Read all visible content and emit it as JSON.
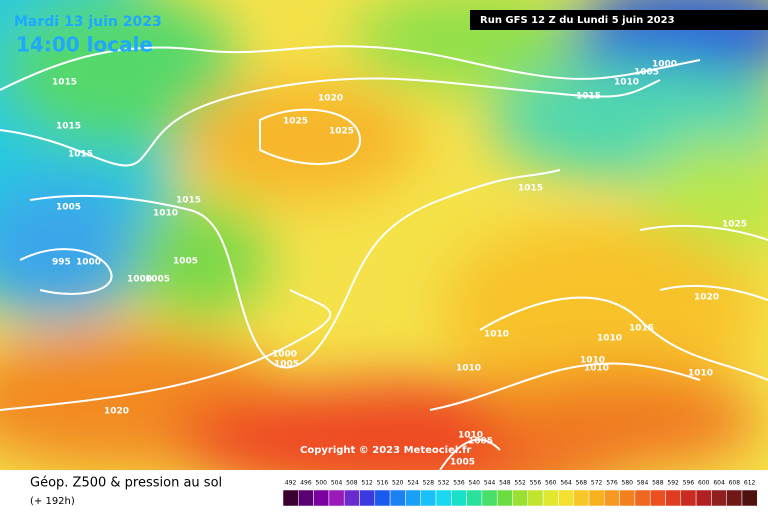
{
  "header": {
    "date": "Mardi 13 juin 2023",
    "time": "14:00 locale",
    "run": "Run GFS 12 Z du Lundi 5 juin 2023"
  },
  "isobar_labels": [
    "1015",
    "1015",
    "1015",
    "1005",
    "1010",
    "1015",
    "995",
    "1000",
    "1000",
    "1005",
    "1005",
    "1020",
    "1025",
    "1025",
    "1015",
    "1015",
    "1010",
    "1005",
    "1000",
    "1025",
    "1020",
    "1015",
    "1010",
    "1010",
    "1010",
    "1010",
    "1010",
    "1010",
    "1000",
    "1005",
    "1020",
    "1010",
    "1005",
    "1005"
  ],
  "copyright": "Copyright © 2023 Meteociel.fr",
  "footer": {
    "title": "Géop. Z500 & pression au sol",
    "subtitle": "(+ 192h)"
  },
  "scale": [
    492,
    496,
    500,
    504,
    508,
    512,
    516,
    520,
    524,
    528,
    532,
    536,
    540,
    544,
    548,
    552,
    556,
    560,
    564,
    568,
    572,
    576,
    580,
    584,
    588,
    592,
    596,
    600,
    604,
    608,
    612
  ]
}
